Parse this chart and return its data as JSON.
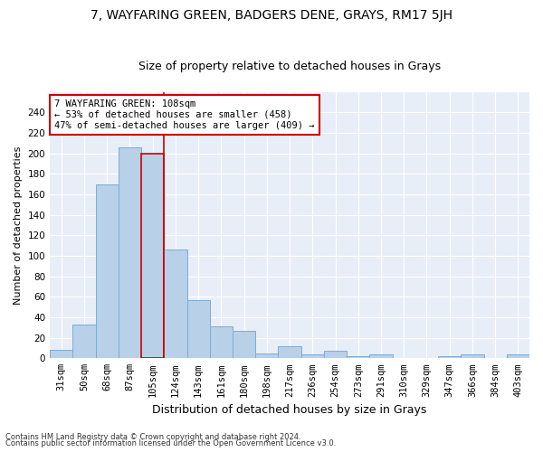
{
  "title": "7, WAYFARING GREEN, BADGERS DENE, GRAYS, RM17 5JH",
  "subtitle": "Size of property relative to detached houses in Grays",
  "xlabel": "Distribution of detached houses by size in Grays",
  "ylabel": "Number of detached properties",
  "categories": [
    "31sqm",
    "50sqm",
    "68sqm",
    "87sqm",
    "105sqm",
    "124sqm",
    "143sqm",
    "161sqm",
    "180sqm",
    "198sqm",
    "217sqm",
    "236sqm",
    "254sqm",
    "273sqm",
    "291sqm",
    "310sqm",
    "329sqm",
    "347sqm",
    "366sqm",
    "384sqm",
    "403sqm"
  ],
  "values": [
    8,
    33,
    170,
    206,
    200,
    106,
    57,
    31,
    27,
    5,
    12,
    4,
    7,
    2,
    4,
    0,
    0,
    2,
    4,
    0,
    4
  ],
  "bar_color": "#b8d0e8",
  "bar_edge_color": "#7aadd4",
  "highlight_index": 4,
  "highlight_color": "#cc0000",
  "annotation_text": "7 WAYFARING GREEN: 108sqm\n← 53% of detached houses are smaller (458)\n47% of semi-detached houses are larger (409) →",
  "annotation_box_color": "#ffffff",
  "annotation_box_edge": "#cc0000",
  "ylim": [
    0,
    260
  ],
  "yticks": [
    0,
    20,
    40,
    60,
    80,
    100,
    120,
    140,
    160,
    180,
    200,
    220,
    240
  ],
  "background_color": "#e8eef8",
  "footer1": "Contains HM Land Registry data © Crown copyright and database right 2024.",
  "footer2": "Contains public sector information licensed under the Open Government Licence v3.0.",
  "title_fontsize": 10,
  "subtitle_fontsize": 9,
  "xlabel_fontsize": 9,
  "ylabel_fontsize": 8,
  "tick_fontsize": 7.5,
  "annotation_fontsize": 7.5
}
